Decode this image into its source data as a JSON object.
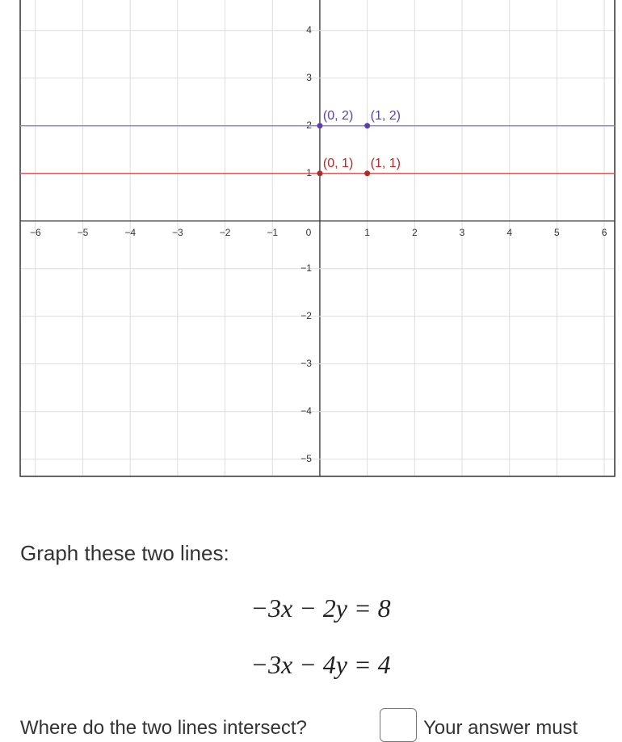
{
  "graph": {
    "xlim": [
      -6.32,
      6.22
    ],
    "ylim": [
      -5.36,
      4.64
    ],
    "xticks": [
      {
        "value": -6,
        "label": "−6"
      },
      {
        "value": -5,
        "label": "−5"
      },
      {
        "value": -4,
        "label": "−4"
      },
      {
        "value": -3,
        "label": "−3"
      },
      {
        "value": -2,
        "label": "−2"
      },
      {
        "value": -1,
        "label": "−1"
      },
      0,
      1,
      2,
      3,
      4,
      5,
      6
    ],
    "yticks": [
      {
        "value": -5,
        "label": "−5"
      },
      {
        "value": -4,
        "label": "−4"
      },
      {
        "value": -3,
        "label": "−3"
      },
      {
        "value": -2,
        "label": "−2"
      },
      {
        "value": -1,
        "label": "−1"
      },
      1,
      2,
      3,
      4
    ],
    "lines": [
      {
        "y": 2,
        "color": "#8f86f0",
        "label_color": "#5b3fb0",
        "points": [
          {
            "x": 0,
            "y": 2,
            "label": "(0, 2)"
          },
          {
            "x": 1,
            "y": 2,
            "label": "(1, 2)"
          }
        ]
      },
      {
        "y": 1,
        "color": "#d9575a",
        "label_color": "#b02a2a",
        "points": [
          {
            "x": 0,
            "y": 1,
            "label": "(0, 1)"
          },
          {
            "x": 1,
            "y": 1,
            "label": "(1, 1)"
          }
        ]
      }
    ]
  },
  "prompt": "Graph these two lines:",
  "equations": [
    "−3x − 2y = 8",
    "−3x − 4y = 4"
  ],
  "question": "Where do the two lines intersect?",
  "note": "Your answer must"
}
